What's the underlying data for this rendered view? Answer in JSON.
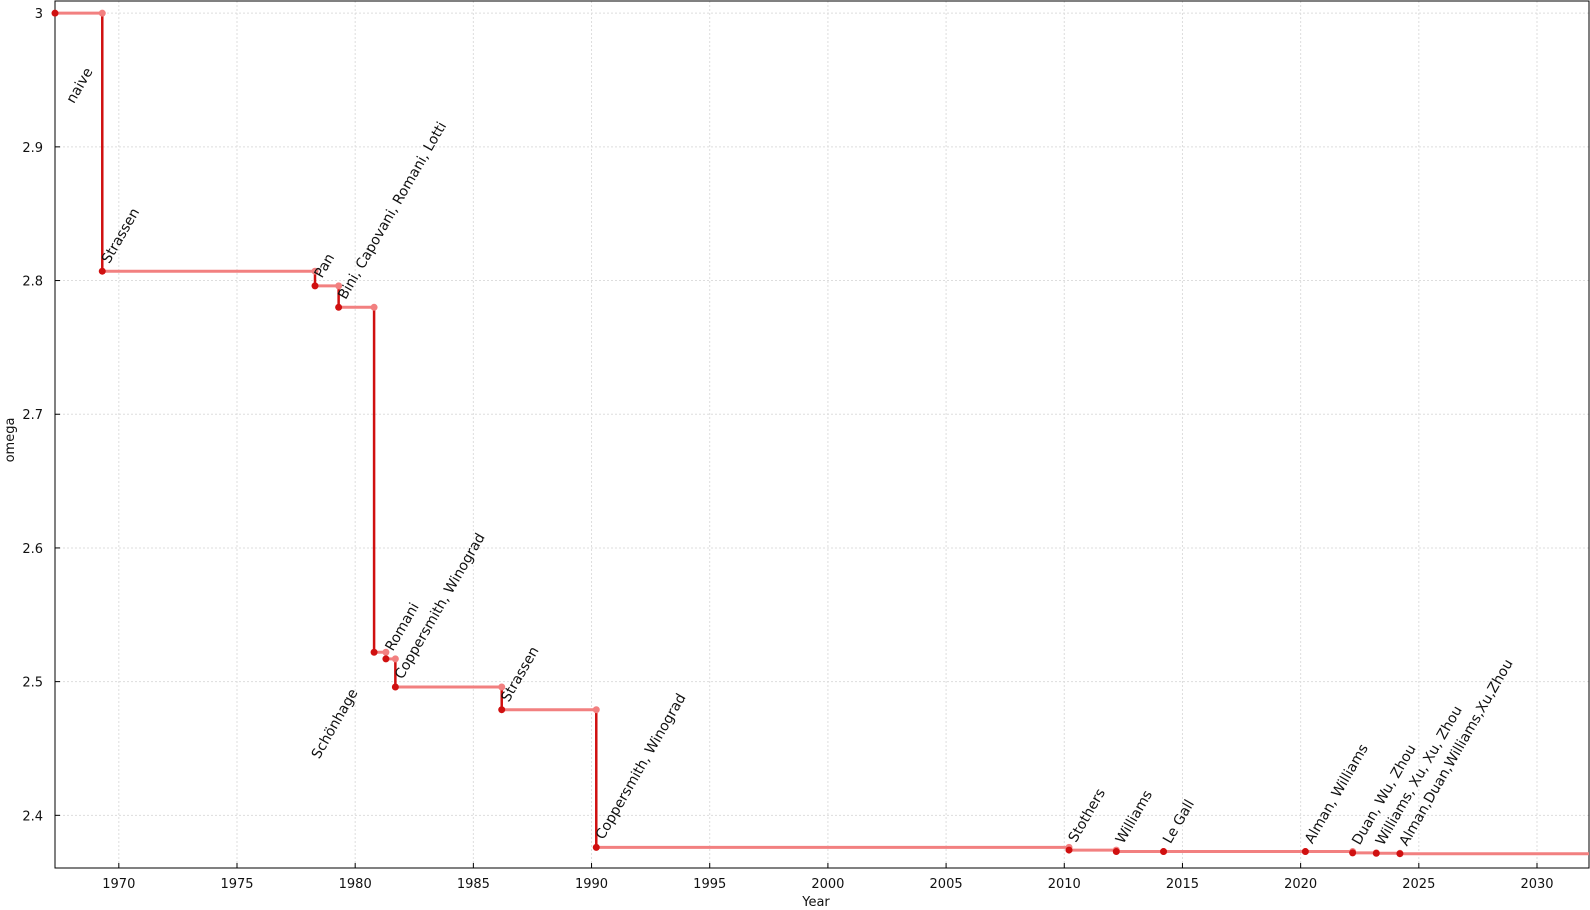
{
  "chart_data": {
    "type": "step",
    "xlabel": "Year",
    "ylabel": "omega",
    "x": [
      1967.3,
      1969.3,
      1978.3,
      1979.3,
      1980.8,
      1981.3,
      1981.7,
      1986.2,
      1990.2,
      2010.2,
      2012.2,
      2014.2,
      2020.2,
      2022.2,
      2023.2,
      2024.2
    ],
    "values": [
      3,
      2.807,
      2.796,
      2.78,
      2.522,
      2.517,
      2.496,
      2.479,
      2.376,
      2.374,
      2.3729,
      2.3729,
      2.3729,
      2.3719,
      2.3716,
      2.3713
    ],
    "labels": [
      "naive",
      "Strassen",
      "Pan",
      "Bini, Capovani, Romani, Lotti",
      "Schönhage",
      "Romani",
      "Coppersmith, Winograd",
      "Strassen",
      "Coppersmith, Winograd",
      "Stothers",
      "Williams",
      "Le Gall",
      "Alman, Williams",
      "Duan, Wu, Zhou",
      "Williams, Xu, Xu, Zhou",
      "Alman,Duan,Williams,Xu,Zhou"
    ],
    "label_colors": [
      "#111111",
      "#111111",
      "#111111",
      "#111111",
      "#111111",
      "#111111",
      "#111111",
      "#111111",
      "#111111",
      "#111111",
      "#111111",
      "#111111",
      "#111111",
      "#888888",
      "#888888",
      "#888888"
    ],
    "line_color": "#f28080",
    "drop_color": "#d01010",
    "xlim": [
      1967.3,
      2032.2
    ],
    "ylim": [
      2.3606,
      3.0091
    ],
    "xticks": [
      1970,
      1975,
      1980,
      1985,
      1990,
      1995,
      2000,
      2005,
      2010,
      2015,
      2020,
      2025,
      2030
    ],
    "yticks": [
      2.4,
      2.5,
      2.6,
      2.7,
      2.8,
      2.9,
      3
    ],
    "grid": true
  }
}
